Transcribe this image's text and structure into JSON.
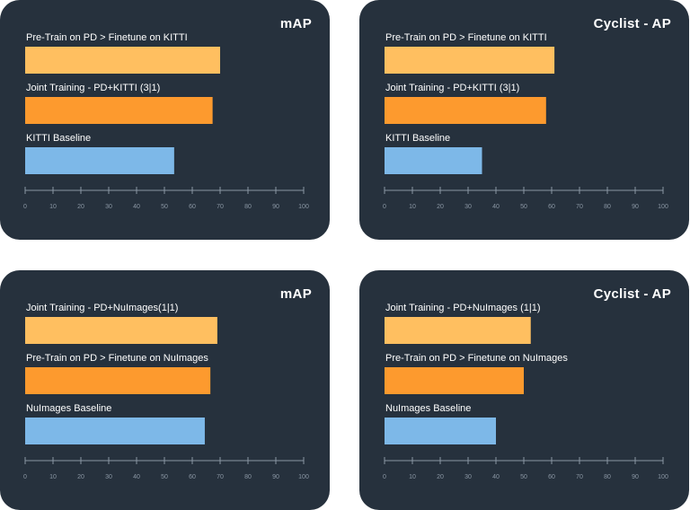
{
  "charts": {
    "bar_colors": [
      "#ffbf60",
      "#fd9a2e",
      "#7db8e8"
    ],
    "axis_color": "#8a96a3",
    "tick_labels": [
      "0",
      "10",
      "20",
      "30",
      "40",
      "50",
      "60",
      "70",
      "80",
      "90",
      "100"
    ]
  },
  "chart_data": [
    {
      "type": "bar",
      "orientation": "horizontal",
      "title": "mAP",
      "categories": [
        "Pre-Train on PD > Finetune on KITTI",
        "Joint Training - PD+KITTI (3|1)",
        "KITTI Baseline"
      ],
      "values": [
        70,
        67.3,
        53.5
      ],
      "xlim": [
        0,
        100
      ]
    },
    {
      "type": "bar",
      "orientation": "horizontal",
      "title": "Cyclist - AP",
      "categories": [
        "Pre-Train on PD > Finetune on KITTI",
        "Joint Training - PD+KITTI (3|1)",
        "KITTI Baseline"
      ],
      "values": [
        61,
        58,
        35
      ],
      "xlim": [
        0,
        100
      ]
    },
    {
      "type": "bar",
      "orientation": "horizontal",
      "title": "mAP",
      "categories": [
        "Joint Training - PD+NuImages(1|1)",
        "Pre-Train on PD > Finetune on NuImages",
        "NuImages Baseline"
      ],
      "values": [
        69,
        66.5,
        64.5
      ],
      "xlim": [
        0,
        100
      ]
    },
    {
      "type": "bar",
      "orientation": "horizontal",
      "title": "Cyclist - AP",
      "categories": [
        "Joint Training - PD+NuImages (1|1)",
        "Pre-Train on PD > Finetune on NuImages",
        "NuImages Baseline"
      ],
      "values": [
        52.5,
        50,
        40
      ],
      "xlim": [
        0,
        100
      ]
    }
  ]
}
